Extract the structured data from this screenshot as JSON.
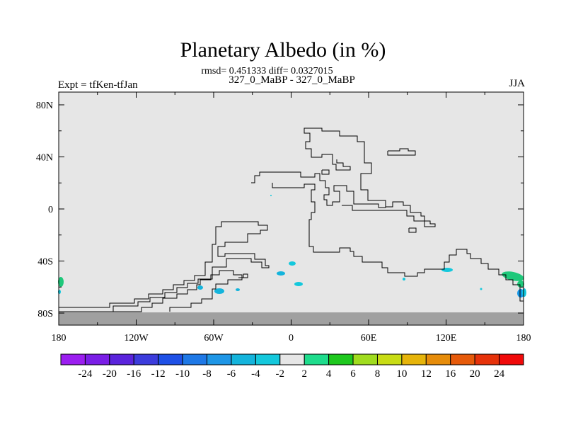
{
  "title": "Planetary Albedo (in %)",
  "stats_line": "rmsd= 0.451333 diff= 0.0327015",
  "center_label": "327_0_MaBP - 327_0_MaBP",
  "left_label": "Expt = tfKen-tfJan",
  "right_label": "JJA",
  "map": {
    "x_ticks": [
      {
        "lon": -180,
        "label": "180"
      },
      {
        "lon": -120,
        "label": "120W"
      },
      {
        "lon": -60,
        "label": "60W"
      },
      {
        "lon": 0,
        "label": "0"
      },
      {
        "lon": 60,
        "label": "60E"
      },
      {
        "lon": 120,
        "label": "120E"
      },
      {
        "lon": 180,
        "label": "180"
      }
    ],
    "y_ticks": [
      {
        "lat": 80,
        "label": "80N"
      },
      {
        "lat": 40,
        "label": "40N"
      },
      {
        "lat": 0,
        "label": "0"
      },
      {
        "lat": -40,
        "label": "40S"
      },
      {
        "lat": -80,
        "label": "80S"
      }
    ],
    "background_color": "#e6e6e6",
    "missing_color": "#a0a0a0"
  },
  "colorbar": {
    "labels": [
      "-24",
      "-20",
      "-16",
      "-12",
      "-10",
      "-8",
      "-6",
      "-4",
      "-2",
      "2",
      "4",
      "6",
      "8",
      "10",
      "12",
      "16",
      "20",
      "24"
    ],
    "colors": [
      "#9b1ef0",
      "#7a1ee6",
      "#5a23dc",
      "#3c3cdc",
      "#1e50e6",
      "#1e78e6",
      "#1e96e6",
      "#14b4dc",
      "#14c8dc",
      "#e6e6e6",
      "#1edc8c",
      "#1ec81e",
      "#a0dc1e",
      "#c8dc14",
      "#e6b40a",
      "#e68c0a",
      "#e65a0a",
      "#e6320a",
      "#f00a0a"
    ]
  }
}
